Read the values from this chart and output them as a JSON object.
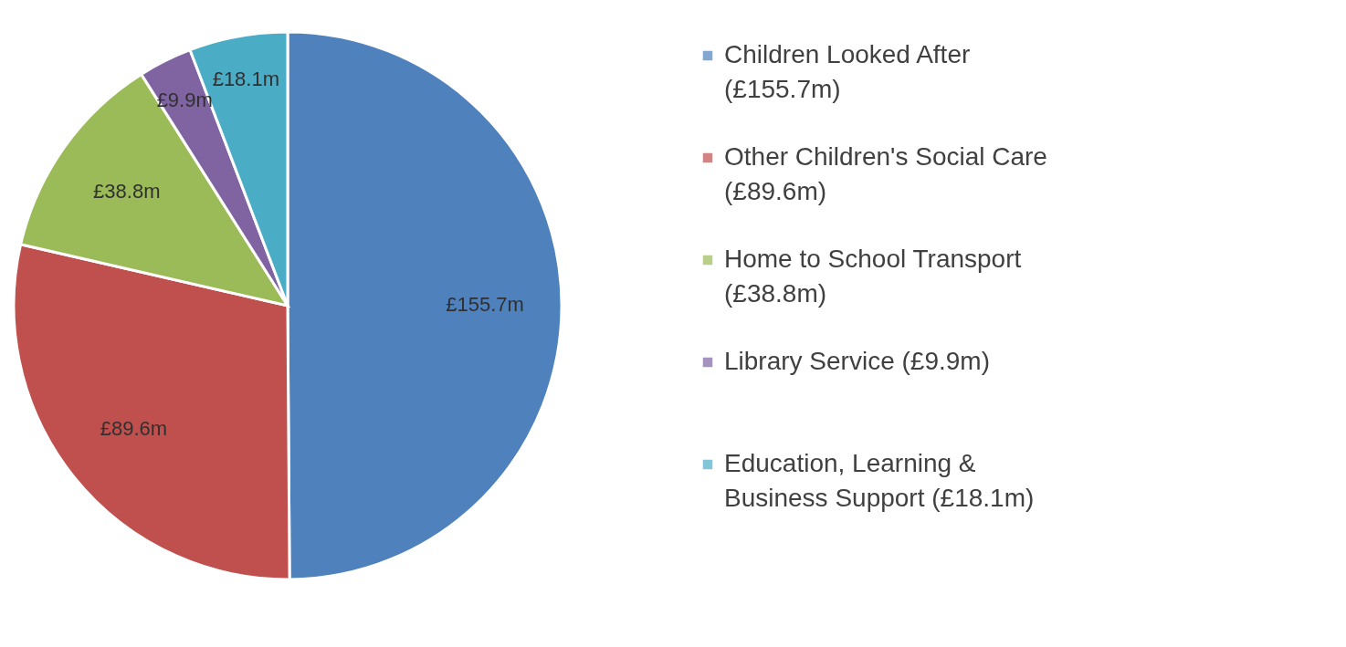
{
  "chart_data": {
    "type": "pie",
    "categories": [
      "Children Looked After (£155.7m)",
      "Other Children's Social Care (£89.6m)",
      "Home to School Transport (£38.8m)",
      "Library Service (£9.9m)",
      "Education, Learning & Business Support (£18.1m)"
    ],
    "values": [
      155.7,
      89.6,
      38.8,
      9.9,
      18.1
    ],
    "colors": [
      "#4f81bd",
      "#c0504d",
      "#9bbb59",
      "#8064a2",
      "#4bacc6"
    ],
    "value_labels": [
      "£155.7m",
      "£89.6m",
      "£38.8m",
      "£9.9m",
      "£18.1m"
    ],
    "legend": "right"
  }
}
